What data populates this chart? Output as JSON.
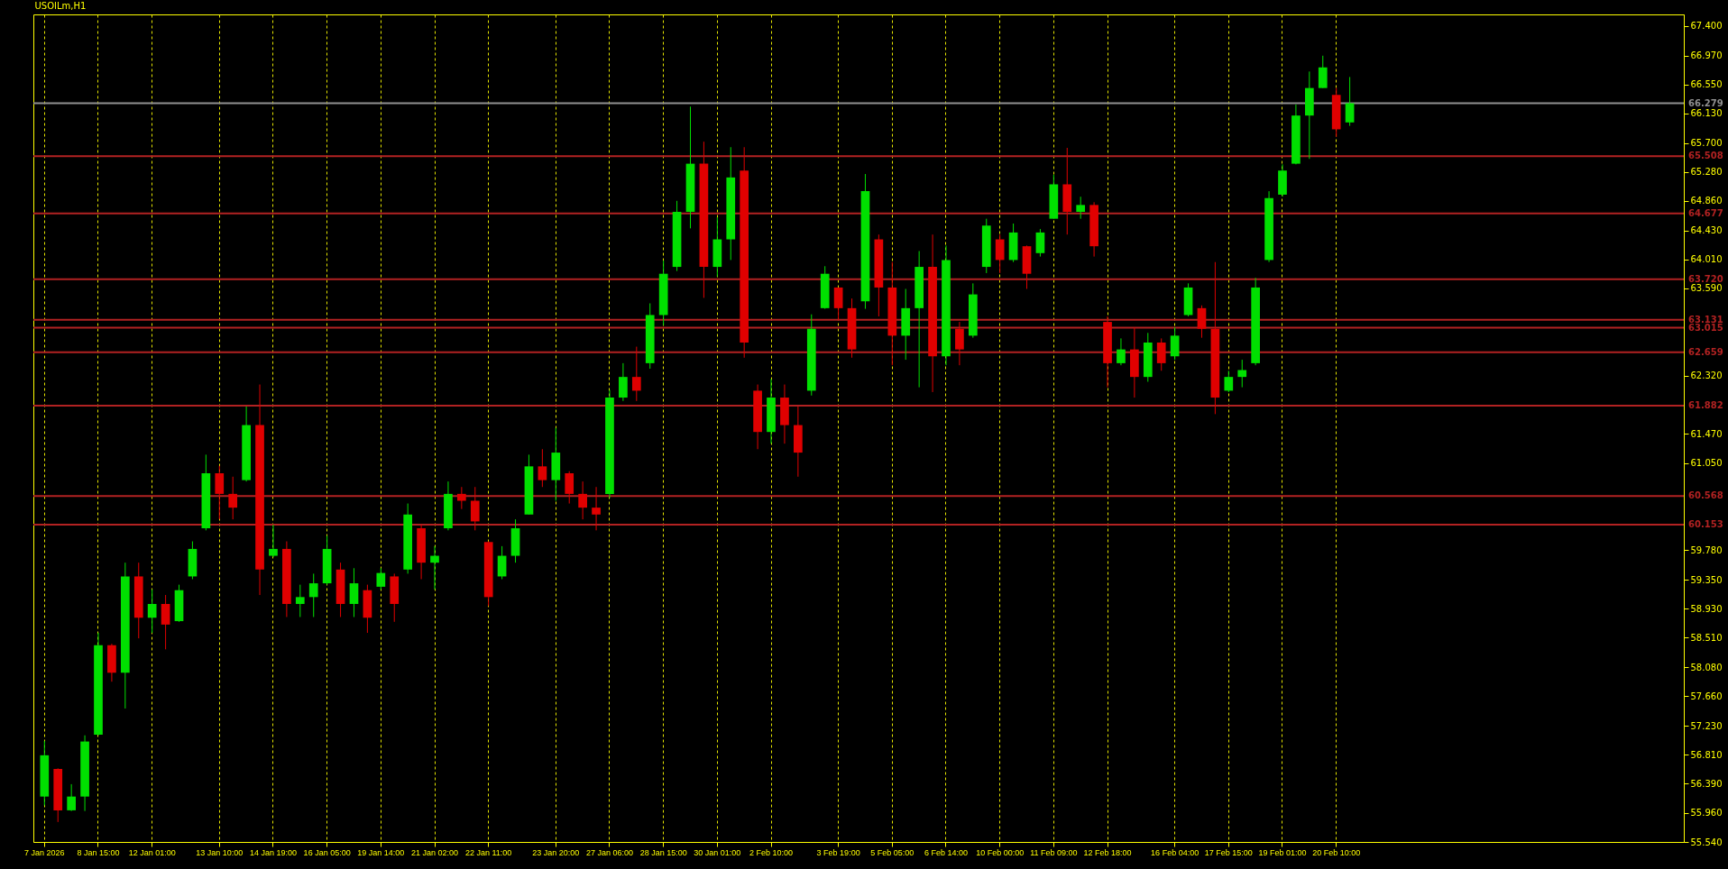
{
  "chart_data": {
    "type": "candlestick",
    "title": "USOILm,H1",
    "categories": [
      "7 Jan 2026",
      null,
      null,
      null,
      "8 Jan 15:00",
      null,
      null,
      null,
      "12 Jan 01:00",
      null,
      null,
      null,
      null,
      "13 Jan 10:00",
      null,
      null,
      null,
      "14 Jan 19:00",
      null,
      null,
      null,
      "16 Jan 05:00",
      null,
      null,
      null,
      "19 Jan 14:00",
      null,
      null,
      null,
      "21 Jan 02:00",
      null,
      null,
      null,
      "22 Jan 11:00",
      null,
      null,
      null,
      null,
      "23 Jan 20:00",
      null,
      null,
      null,
      "27 Jan 06:00",
      null,
      null,
      null,
      "28 Jan 15:00",
      null,
      null,
      null,
      "30 Jan 01:00",
      null,
      null,
      null,
      "2 Feb 10:00",
      null,
      null,
      null,
      null,
      "3 Feb 19:00",
      null,
      null,
      null,
      "5 Feb 05:00",
      null,
      null,
      null,
      "6 Feb 14:00",
      null,
      null,
      null,
      "10 Feb 00:00",
      null,
      null,
      null,
      "11 Feb 09:00",
      null,
      null,
      null,
      "12 Feb 18:00",
      null,
      null,
      null,
      null,
      "16 Feb 04:00",
      null,
      null,
      null,
      "17 Feb 15:00",
      null,
      null,
      null,
      "19 Feb 01:00",
      null,
      null,
      null,
      "20 Feb 10:00",
      null,
      null,
      null,
      null,
      null,
      null,
      null,
      null,
      null,
      null,
      null,
      null,
      null,
      null,
      null,
      null,
      null,
      null,
      null,
      null,
      null,
      null,
      null,
      null,
      null
    ],
    "ohlc": [
      [
        56.2,
        57.01,
        56.07,
        56.8
      ],
      [
        56.6,
        56.61,
        55.83,
        56.0
      ],
      [
        56.0,
        56.38,
        55.99,
        56.2
      ],
      [
        56.2,
        57.09,
        55.99,
        57.0
      ],
      [
        57.1,
        58.58,
        57.09,
        58.4
      ],
      [
        58.4,
        58.42,
        57.87,
        58.0
      ],
      [
        58.0,
        59.6,
        57.48,
        59.4
      ],
      [
        59.4,
        59.6,
        58.5,
        58.8
      ],
      [
        58.8,
        59.21,
        58.58,
        59.0
      ],
      [
        59.0,
        59.13,
        58.34,
        58.7
      ],
      [
        58.75,
        59.28,
        58.74,
        59.2
      ],
      [
        59.4,
        59.91,
        59.36,
        59.8
      ],
      [
        60.1,
        61.17,
        60.07,
        60.9
      ],
      [
        60.9,
        61.01,
        60.23,
        60.6
      ],
      [
        60.6,
        60.85,
        60.23,
        60.4
      ],
      [
        60.8,
        61.87,
        60.78,
        61.6
      ],
      [
        61.6,
        62.19,
        59.13,
        59.5
      ],
      [
        59.7,
        60.15,
        59.68,
        59.8
      ],
      [
        59.8,
        59.91,
        58.81,
        59.0
      ],
      [
        59.0,
        59.28,
        58.81,
        59.1
      ],
      [
        59.1,
        59.44,
        58.81,
        59.3
      ],
      [
        59.3,
        59.99,
        59.28,
        59.8
      ],
      [
        59.5,
        59.6,
        58.81,
        59.0
      ],
      [
        59.0,
        59.52,
        58.81,
        59.3
      ],
      [
        59.2,
        59.28,
        58.58,
        58.8
      ],
      [
        59.25,
        59.52,
        59.21,
        59.45
      ],
      [
        59.4,
        59.44,
        58.74,
        59.0
      ],
      [
        59.5,
        60.46,
        59.44,
        60.3
      ],
      [
        60.1,
        60.15,
        59.36,
        59.6
      ],
      [
        59.6,
        59.84,
        59.21,
        59.7
      ],
      [
        60.1,
        60.78,
        60.07,
        60.6
      ],
      [
        60.6,
        60.7,
        60.38,
        60.5
      ],
      [
        60.5,
        60.7,
        60.07,
        60.2
      ],
      [
        59.9,
        59.91,
        58.97,
        59.1
      ],
      [
        59.4,
        59.84,
        59.36,
        59.7
      ],
      [
        59.7,
        60.23,
        59.6,
        60.1
      ],
      [
        60.3,
        61.17,
        60.3,
        61.0
      ],
      [
        61.0,
        61.25,
        60.7,
        60.8
      ],
      [
        60.8,
        61.56,
        60.5,
        61.2
      ],
      [
        60.9,
        60.93,
        60.46,
        60.6
      ],
      [
        60.6,
        60.78,
        60.23,
        60.4
      ],
      [
        60.4,
        60.7,
        60.07,
        60.3
      ],
      [
        60.6,
        62.11,
        60.54,
        62.0
      ],
      [
        62.0,
        62.5,
        61.95,
        62.3
      ],
      [
        62.3,
        62.74,
        61.95,
        62.1
      ],
      [
        62.5,
        63.37,
        62.42,
        63.2
      ],
      [
        63.2,
        63.99,
        63.05,
        63.8
      ],
      [
        63.9,
        64.86,
        63.84,
        64.7
      ],
      [
        64.7,
        66.23,
        64.46,
        65.4
      ],
      [
        65.4,
        65.72,
        63.45,
        63.9
      ],
      [
        63.9,
        64.62,
        63.76,
        64.3
      ],
      [
        64.3,
        65.64,
        64.0,
        65.2
      ],
      [
        65.3,
        65.64,
        62.58,
        62.8
      ],
      [
        62.1,
        62.19,
        61.25,
        61.5
      ],
      [
        61.5,
        62.27,
        61.33,
        62.0
      ],
      [
        62.0,
        62.19,
        61.33,
        61.6
      ],
      [
        61.6,
        61.87,
        60.85,
        61.2
      ],
      [
        62.1,
        63.21,
        62.03,
        63.0
      ],
      [
        63.3,
        63.91,
        63.29,
        63.8
      ],
      [
        63.6,
        63.6,
        63.13,
        63.3
      ],
      [
        63.3,
        63.44,
        62.58,
        62.7
      ],
      [
        63.4,
        65.25,
        63.29,
        65.0
      ],
      [
        64.3,
        64.37,
        63.18,
        63.6
      ],
      [
        63.6,
        63.97,
        62.47,
        62.9
      ],
      [
        62.9,
        63.58,
        62.55,
        63.3
      ],
      [
        63.3,
        64.13,
        62.15,
        63.9
      ],
      [
        63.9,
        64.37,
        62.08,
        62.6
      ],
      [
        62.6,
        64.21,
        62.47,
        64.0
      ],
      [
        63.0,
        63.1,
        62.47,
        62.7
      ],
      [
        62.9,
        63.66,
        62.87,
        63.5
      ],
      [
        63.9,
        64.6,
        63.81,
        64.5
      ],
      [
        64.3,
        64.37,
        63.81,
        64.0
      ],
      [
        64.0,
        64.53,
        63.97,
        64.4
      ],
      [
        64.2,
        64.21,
        63.58,
        63.8
      ],
      [
        64.1,
        64.45,
        64.05,
        64.4
      ],
      [
        64.6,
        65.24,
        64.6,
        65.1
      ],
      [
        65.1,
        65.63,
        64.37,
        64.7
      ],
      [
        64.7,
        64.92,
        64.6,
        64.8
      ],
      [
        64.8,
        64.84,
        64.05,
        64.2
      ],
      [
        63.1,
        63.18,
        62.15,
        62.5
      ],
      [
        62.5,
        62.86,
        62.47,
        62.7
      ],
      [
        62.7,
        63.02,
        62.0,
        62.3
      ],
      [
        62.3,
        62.94,
        62.23,
        62.8
      ],
      [
        62.8,
        62.86,
        62.39,
        62.5
      ],
      [
        62.6,
        63.02,
        62.55,
        62.9
      ],
      [
        63.2,
        63.66,
        63.18,
        63.6
      ],
      [
        63.3,
        63.34,
        62.87,
        63.0
      ],
      [
        63.0,
        63.97,
        61.76,
        62.0
      ],
      [
        62.1,
        62.39,
        62.08,
        62.3
      ],
      [
        62.3,
        62.55,
        62.15,
        62.4
      ],
      [
        62.5,
        63.74,
        62.47,
        63.6
      ],
      [
        64.0,
        65.0,
        63.97,
        64.9
      ],
      [
        64.95,
        65.39,
        64.92,
        65.3
      ],
      [
        65.4,
        66.26,
        65.39,
        66.1
      ],
      [
        66.1,
        66.74,
        65.47,
        66.5
      ],
      [
        66.5,
        66.97,
        66.5,
        66.8
      ],
      [
        66.4,
        66.5,
        65.79,
        65.9
      ],
      [
        66.0,
        66.66,
        65.95,
        66.279
      ],
      null,
      null,
      null,
      null,
      null,
      null,
      null,
      null,
      null,
      null,
      null,
      null,
      null,
      null,
      null,
      null,
      null,
      null,
      null,
      null,
      null,
      null,
      null,
      null
    ],
    "colors": [
      "#00e000",
      "#e00000",
      "#00e000",
      "#00e000",
      "#00e000",
      "#e00000",
      "#00e000",
      "#e00000",
      "#00e000",
      "#e00000",
      "#00e000",
      "#00e000",
      "#00e000",
      "#e00000",
      "#e00000",
      "#00e000",
      "#e00000",
      "#00e000",
      "#e00000",
      "#00e000",
      "#00e000",
      "#00e000",
      "#e00000",
      "#00e000",
      "#e00000",
      "#00e000",
      "#e00000",
      "#00e000",
      "#e00000",
      "#00e000",
      "#00e000",
      "#e00000",
      "#e00000",
      "#e00000",
      "#00e000",
      "#00e000",
      "#00e000",
      "#e00000",
      "#00e000",
      "#e00000",
      "#e00000",
      "#e00000",
      "#00e000",
      "#00e000",
      "#e00000",
      "#00e000",
      "#00e000",
      "#00e000",
      "#00e000",
      "#e00000",
      "#00e000",
      "#00e000",
      "#e00000",
      "#e00000",
      "#00e000",
      "#e00000",
      "#e00000",
      "#00e000",
      "#00e000",
      "#e00000",
      "#e00000",
      "#00e000",
      "#e00000",
      "#e00000",
      "#00e000",
      "#00e000",
      "#e00000",
      "#00e000",
      "#e00000",
      "#00e000",
      "#00e000",
      "#e00000",
      "#00e000",
      "#e00000",
      "#00e000",
      "#00e000",
      "#e00000",
      "#00e000",
      "#e00000",
      "#e00000",
      "#00e000",
      "#e00000",
      "#00e000",
      "#e00000",
      "#00e000",
      "#00e000",
      "#e00000",
      "#e00000",
      "#00e000",
      "#00e000",
      "#00e000",
      "#00e000",
      "#00e000",
      "#00e000",
      "#00e000",
      "#00e000",
      "#e00000",
      "#00e000",
      null,
      null,
      null,
      null,
      null,
      null,
      null,
      null,
      null,
      null,
      null,
      null,
      null,
      null,
      null,
      null,
      null,
      null,
      null,
      null,
      null,
      null,
      null,
      null
    ],
    "ylim": [
      55.54,
      67.57
    ],
    "yticks": [
      {
        "value": 67.4,
        "label": "67.400"
      },
      {
        "value": 66.97,
        "label": "66.970"
      },
      {
        "value": 66.55,
        "label": "66.550"
      },
      {
        "value": 66.13,
        "label": "66.130"
      },
      {
        "value": 65.7,
        "label": "65.700"
      },
      {
        "value": 65.28,
        "label": "65.280"
      },
      {
        "value": 64.86,
        "label": "64.860"
      },
      {
        "value": 64.43,
        "label": "64.430"
      },
      {
        "value": 64.01,
        "label": "64.010"
      },
      {
        "value": 63.59,
        "label": "63.590"
      },
      {
        "value": 62.32,
        "label": "62.320"
      },
      {
        "value": 61.47,
        "label": "61.470"
      },
      {
        "value": 61.05,
        "label": "61.050"
      },
      {
        "value": 59.78,
        "label": "59.780"
      },
      {
        "value": 59.35,
        "label": "59.350"
      },
      {
        "value": 58.93,
        "label": "58.930"
      },
      {
        "value": 58.51,
        "label": "58.510"
      },
      {
        "value": 58.08,
        "label": "58.080"
      },
      {
        "value": 57.66,
        "label": "57.660"
      },
      {
        "value": 57.23,
        "label": "57.230"
      },
      {
        "value": 56.81,
        "label": "56.810"
      },
      {
        "value": 56.39,
        "label": "56.390"
      },
      {
        "value": 55.96,
        "label": "55.960"
      },
      {
        "value": 55.54,
        "label": "55.540"
      }
    ],
    "ref_lines": [
      {
        "axis": "y",
        "value": 66.279,
        "label": "66.279",
        "color": "#909090"
      },
      {
        "axis": "y",
        "value": 65.508,
        "label": "65.508",
        "color": "#b22222"
      },
      {
        "axis": "y",
        "value": 64.677,
        "label": "64.677",
        "color": "#b22222"
      },
      {
        "axis": "y",
        "value": 63.72,
        "label": "63.720",
        "color": "#b22222"
      },
      {
        "axis": "y",
        "value": 63.131,
        "label": "63.131",
        "color": "#b22222"
      },
      {
        "axis": "y",
        "value": 63.015,
        "label": "63.015",
        "color": "#b22222"
      },
      {
        "axis": "y",
        "value": 62.659,
        "label": "62.659",
        "color": "#b22222"
      },
      {
        "axis": "y",
        "value": 61.882,
        "label": "61.882",
        "color": "#b22222"
      },
      {
        "axis": "y",
        "value": 60.568,
        "label": "60.568",
        "color": "#b22222"
      },
      {
        "axis": "y",
        "value": 60.153,
        "label": "60.153",
        "color": "#b22222"
      }
    ],
    "grid": "x"
  }
}
